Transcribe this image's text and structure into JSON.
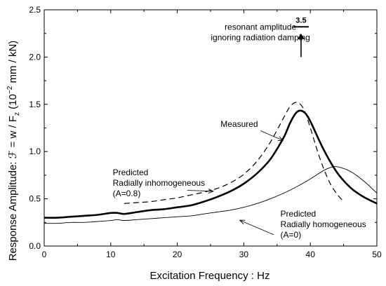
{
  "chart_data": {
    "type": "line",
    "xlabel": "Excitation Frequency : Hz",
    "ylabel": "Response Amplitude: ℱ = w / F",
    "ylabel_sub": "z",
    "ylabel_unit_open": " (10",
    "ylabel_unit_exp": "−2",
    "ylabel_unit_close": " mm / kN)",
    "xlim": [
      0,
      50
    ],
    "ylim": [
      0,
      2.5
    ],
    "x_ticks": [
      0,
      10,
      20,
      30,
      40,
      50
    ],
    "x_tick_labels": [
      "0",
      "10",
      "20",
      "30",
      "40",
      "50"
    ],
    "y_ticks": [
      0,
      0.5,
      1.0,
      1.5,
      2.0,
      2.5
    ],
    "y_tick_labels": [
      "0.0",
      "0.5",
      "1.0",
      "1.5",
      "2.0",
      "2.5"
    ],
    "grid": false,
    "series": [
      {
        "name": "Measured",
        "style": "thick-solid",
        "color": "#000000",
        "x": [
          0,
          2,
          4,
          6,
          8,
          10,
          11,
          12,
          14,
          16,
          18,
          20,
          22,
          24,
          26,
          28,
          30,
          32,
          34,
          36,
          37,
          38,
          39,
          40,
          42,
          44,
          46,
          48,
          50
        ],
        "y": [
          0.3,
          0.3,
          0.31,
          0.32,
          0.33,
          0.35,
          0.35,
          0.34,
          0.36,
          0.38,
          0.39,
          0.41,
          0.43,
          0.47,
          0.52,
          0.58,
          0.66,
          0.77,
          0.92,
          1.15,
          1.31,
          1.42,
          1.42,
          1.32,
          1.02,
          0.78,
          0.62,
          0.52,
          0.45
        ]
      },
      {
        "name": "Predicted Radially inhomogeneous (A=0.8)",
        "style": "dashed",
        "color": "#000000",
        "x": [
          12,
          14,
          16,
          18,
          20,
          22,
          24,
          26,
          28,
          30,
          32,
          34,
          36,
          37,
          38,
          39,
          40,
          41,
          42,
          43,
          44,
          45
        ],
        "y": [
          0.45,
          0.46,
          0.47,
          0.49,
          0.51,
          0.54,
          0.57,
          0.61,
          0.67,
          0.76,
          0.9,
          1.1,
          1.36,
          1.48,
          1.52,
          1.45,
          1.25,
          1.02,
          0.82,
          0.66,
          0.55,
          0.47
        ]
      },
      {
        "name": "Predicted Radially homogeneous (A=0)",
        "style": "thin-solid",
        "color": "#000000",
        "x": [
          0,
          2,
          4,
          6,
          8,
          10,
          11,
          12,
          14,
          16,
          18,
          20,
          22,
          24,
          26,
          28,
          30,
          32,
          34,
          36,
          38,
          40,
          42,
          43,
          44,
          46,
          48,
          50
        ],
        "y": [
          0.24,
          0.24,
          0.25,
          0.25,
          0.26,
          0.27,
          0.28,
          0.27,
          0.28,
          0.29,
          0.3,
          0.31,
          0.32,
          0.34,
          0.36,
          0.38,
          0.41,
          0.45,
          0.5,
          0.56,
          0.63,
          0.71,
          0.8,
          0.83,
          0.84,
          0.79,
          0.69,
          0.56
        ]
      }
    ],
    "annotations": [
      {
        "id": "measured",
        "lines": [
          "Measured"
        ],
        "anchor": "start",
        "text_at": [
          26.5,
          1.26
        ],
        "leader_from": [
          32.5,
          1.22
        ],
        "leader_to": [
          35.8,
          1.12
        ]
      },
      {
        "id": "inhomogeneous",
        "lines": [
          "Predicted",
          "Radially inhomogeneous",
          "(A=0.8)"
        ],
        "anchor": "start",
        "text_at": [
          10.3,
          0.75
        ],
        "leader_from": [
          21.5,
          0.59
        ],
        "leader_to": [
          25.3,
          0.58
        ]
      },
      {
        "id": "homogeneous",
        "lines": [
          "Predicted",
          "Radially homogeneous",
          "(A=0)"
        ],
        "anchor": "start",
        "text_at": [
          35.5,
          0.31
        ],
        "leader_from": [
          34.5,
          0.12
        ],
        "leader_to": [
          29.5,
          0.27
        ]
      },
      {
        "id": "resonant",
        "lines": [
          "resonant amplitude",
          "ignoring radiation damping"
        ],
        "anchor": "middle",
        "text_at": [
          32.5,
          2.29
        ],
        "leader_from": null,
        "leader_to": null
      }
    ],
    "resonant_marker": {
      "label": "3.5",
      "x": 38.6,
      "bar_y": 2.32,
      "arrow_from_y": 2.0,
      "arrow_to_y": 2.25
    }
  }
}
